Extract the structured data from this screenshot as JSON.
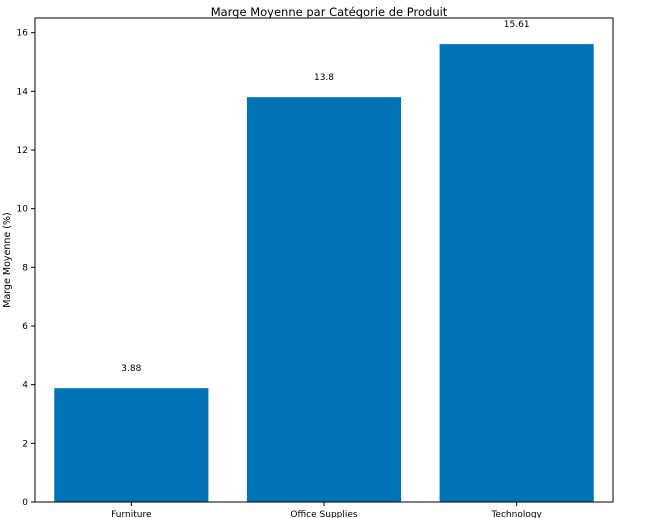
{
  "chart_data": {
    "type": "bar",
    "title": "Marge Moyenne par Catégorie de Produit",
    "xlabel": "",
    "ylabel": "Marge Moyenne (%)",
    "categories": [
      "Furniture",
      "Office Supplies",
      "Technology"
    ],
    "values": [
      3.88,
      13.8,
      15.61
    ],
    "value_labels": [
      "3.88",
      "13.8",
      "15.61"
    ],
    "ylim": [
      0,
      16.5
    ],
    "yticks": [
      0,
      2,
      4,
      6,
      8,
      10,
      12,
      14,
      16
    ],
    "grid": false,
    "bar_color": "#0072b5",
    "axis_color": "#000000",
    "legend": "none"
  }
}
